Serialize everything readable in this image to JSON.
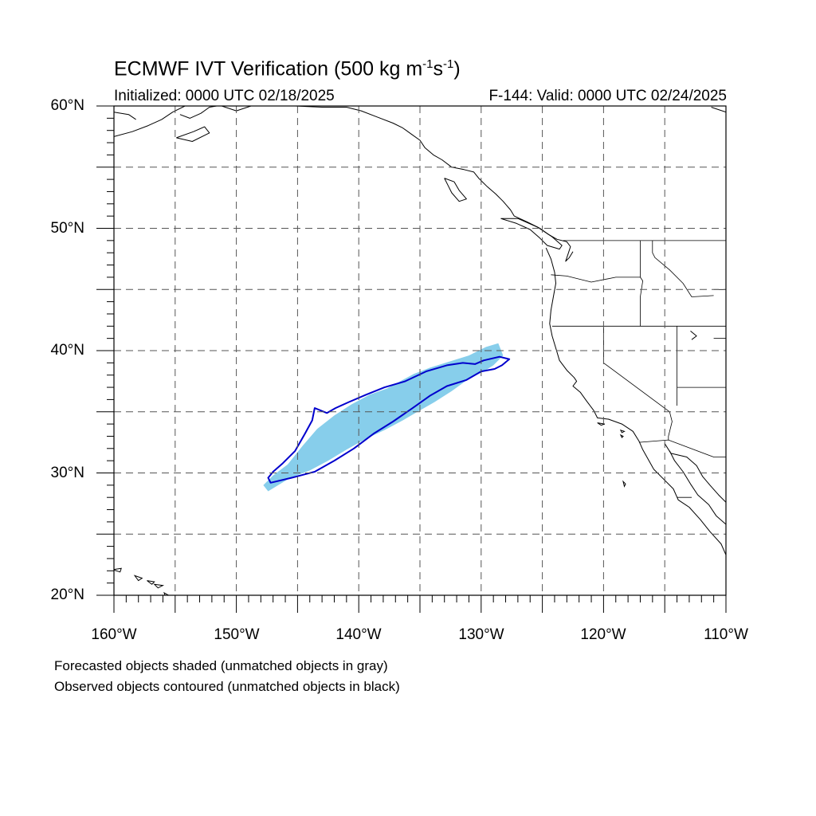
{
  "title": {
    "prefix": "ECMWF IVT Verification (500 kg m",
    "exp1": "-1",
    "mid": "s",
    "exp2": "-1",
    "suffix": ")"
  },
  "subtitle_left": "Initialized: 0000 UTC 02/18/2025",
  "subtitle_right": "F-144: Valid: 0000 UTC 02/24/2025",
  "lat_labels": [
    "60°N",
    "50°N",
    "40°N",
    "30°N",
    "20°N"
  ],
  "lon_labels": [
    "160°W",
    "150°W",
    "140°W",
    "130°W",
    "120°W",
    "110°W"
  ],
  "footer": [
    "Forecasted objects shaded (unmatched objects in gray)",
    "Observed objects contoured (unmatched objects in black)"
  ],
  "colors": {
    "forecast_fill": "#87ceeb",
    "observed_contour": "#0000cd",
    "coastline": "#000000",
    "grid": "#555555"
  },
  "map": {
    "lon_min": -160,
    "lon_max": -110,
    "lat_min": 20,
    "lat_max": 60,
    "grid_step_deg": 5,
    "minor_tick_deg": 1,
    "forecast_object": [
      [
        -147.4,
        28.5
      ],
      [
        -145.6,
        29.6
      ],
      [
        -144.0,
        30.2
      ],
      [
        -142.5,
        31.0
      ],
      [
        -141.0,
        31.9
      ],
      [
        -139.4,
        32.8
      ],
      [
        -137.9,
        33.5
      ],
      [
        -136.4,
        34.3
      ],
      [
        -135.2,
        35.0
      ],
      [
        -133.8,
        35.8
      ],
      [
        -132.4,
        36.7
      ],
      [
        -131.0,
        37.7
      ],
      [
        -129.8,
        38.3
      ],
      [
        -129.0,
        38.8
      ],
      [
        -128.2,
        39.6
      ],
      [
        -128.6,
        40.6
      ],
      [
        -129.6,
        40.3
      ],
      [
        -131.0,
        39.6
      ],
      [
        -132.6,
        39.1
      ],
      [
        -134.2,
        38.6
      ],
      [
        -135.5,
        38.1
      ],
      [
        -136.6,
        37.5
      ],
      [
        -137.7,
        36.9
      ],
      [
        -139.1,
        36.4
      ],
      [
        -140.6,
        35.6
      ],
      [
        -142.0,
        34.7
      ],
      [
        -143.4,
        33.6
      ],
      [
        -144.6,
        32.2
      ],
      [
        -145.8,
        30.7
      ],
      [
        -147.0,
        29.8
      ],
      [
        -147.8,
        29.0
      ]
    ],
    "observed_object": [
      [
        -147.2,
        29.2
      ],
      [
        -145.5,
        29.6
      ],
      [
        -143.6,
        30.1
      ],
      [
        -142.0,
        31.0
      ],
      [
        -140.4,
        32.0
      ],
      [
        -138.8,
        33.2
      ],
      [
        -137.2,
        34.2
      ],
      [
        -135.6,
        35.3
      ],
      [
        -134.2,
        36.3
      ],
      [
        -132.8,
        37.1
      ],
      [
        -131.2,
        37.6
      ],
      [
        -130.0,
        38.3
      ],
      [
        -128.9,
        38.5
      ],
      [
        -128.3,
        38.8
      ],
      [
        -127.7,
        39.3
      ],
      [
        -128.5,
        39.5
      ],
      [
        -129.8,
        39.2
      ],
      [
        -130.5,
        38.9
      ],
      [
        -131.5,
        39.0
      ],
      [
        -132.8,
        38.8
      ],
      [
        -134.5,
        38.3
      ],
      [
        -136.2,
        37.5
      ],
      [
        -137.9,
        37.0
      ],
      [
        -139.4,
        36.4
      ],
      [
        -140.8,
        35.8
      ],
      [
        -141.9,
        35.3
      ],
      [
        -142.6,
        34.9
      ],
      [
        -143.6,
        35.3
      ],
      [
        -143.8,
        34.3
      ],
      [
        -144.4,
        33.2
      ],
      [
        -145.2,
        31.8
      ],
      [
        -146.2,
        30.8
      ],
      [
        -147.0,
        30.1
      ],
      [
        -147.4,
        29.6
      ]
    ],
    "coastlines": [
      [
        [
          -160,
          57.5
        ],
        [
          -158.5,
          57.9
        ],
        [
          -157.2,
          58.4
        ],
        [
          -156.1,
          58.9
        ],
        [
          -155.2,
          59.5
        ],
        [
          -154.2,
          60.0
        ]
      ],
      [
        [
          -160,
          59.5
        ],
        [
          -158.8,
          59.3
        ],
        [
          -158.2,
          58.9
        ]
      ],
      [
        [
          -154.6,
          59.3
        ],
        [
          -153.8,
          59.0
        ],
        [
          -152.9,
          59.4
        ],
        [
          -152.2,
          59.9
        ],
        [
          -151.6,
          60.0
        ]
      ],
      [
        [
          -154.9,
          57.4
        ],
        [
          -153.5,
          57.9
        ],
        [
          -152.6,
          58.3
        ],
        [
          -152.2,
          57.8
        ],
        [
          -153.6,
          57.1
        ],
        [
          -154.9,
          57.4
        ]
      ],
      [
        [
          -151.2,
          60.0
        ],
        [
          -150.0,
          59.6
        ],
        [
          -148.8,
          60.0
        ]
      ],
      [
        [
          -147.0,
          60.0
        ],
        [
          -145.2,
          60.0
        ],
        [
          -143.0,
          59.9
        ],
        [
          -141.0,
          59.9
        ],
        [
          -139.8,
          59.6
        ],
        [
          -138.5,
          59.1
        ],
        [
          -137.2,
          58.6
        ],
        [
          -136.4,
          58.2
        ],
        [
          -135.7,
          57.7
        ],
        [
          -135.0,
          57.2
        ],
        [
          -134.6,
          56.6
        ],
        [
          -133.9,
          56.0
        ],
        [
          -133.2,
          55.6
        ],
        [
          -132.4,
          55.0
        ],
        [
          -131.4,
          54.8
        ],
        [
          -130.6,
          54.6
        ],
        [
          -130.2,
          54.1
        ],
        [
          -129.5,
          53.4
        ],
        [
          -128.8,
          52.8
        ],
        [
          -128.2,
          52.2
        ],
        [
          -127.6,
          51.5
        ],
        [
          -127.3,
          51.0
        ],
        [
          -126.2,
          50.5
        ],
        [
          -125.2,
          50.0
        ],
        [
          -124.5,
          49.5
        ],
        [
          -123.8,
          49.1
        ],
        [
          -123.0,
          48.9
        ],
        [
          -122.7,
          48.5
        ],
        [
          -122.9,
          47.9
        ],
        [
          -123.1,
          47.3
        ],
        [
          -122.8,
          47.6
        ],
        [
          -122.5,
          48.1
        ]
      ],
      [
        [
          -133.0,
          54.1
        ],
        [
          -132.2,
          53.8
        ],
        [
          -131.8,
          53.1
        ],
        [
          -131.2,
          52.4
        ],
        [
          -131.8,
          52.2
        ],
        [
          -132.4,
          52.9
        ],
        [
          -132.7,
          53.5
        ],
        [
          -133.0,
          54.1
        ]
      ],
      [
        [
          -128.4,
          50.8
        ],
        [
          -127.1,
          50.4
        ],
        [
          -126.0,
          49.9
        ],
        [
          -125.2,
          49.2
        ],
        [
          -124.6,
          48.6
        ],
        [
          -123.6,
          48.3
        ],
        [
          -123.4,
          48.6
        ],
        [
          -124.2,
          49.3
        ],
        [
          -125.4,
          50.1
        ],
        [
          -127.0,
          50.8
        ],
        [
          -128.4,
          50.8
        ]
      ],
      [
        [
          -124.7,
          48.4
        ],
        [
          -124.3,
          47.5
        ],
        [
          -124.0,
          46.4
        ],
        [
          -123.9,
          45.5
        ],
        [
          -124.1,
          44.4
        ],
        [
          -124.3,
          43.3
        ],
        [
          -124.4,
          42.2
        ],
        [
          -124.2,
          41.2
        ],
        [
          -123.9,
          40.2
        ],
        [
          -123.6,
          39.2
        ],
        [
          -123.0,
          38.4
        ],
        [
          -122.4,
          37.8
        ],
        [
          -122.2,
          37.5
        ],
        [
          -122.5,
          37.1
        ],
        [
          -121.9,
          36.6
        ],
        [
          -121.4,
          35.9
        ],
        [
          -120.8,
          35.1
        ],
        [
          -120.5,
          34.5
        ],
        [
          -119.6,
          34.4
        ],
        [
          -118.5,
          34.0
        ],
        [
          -117.6,
          33.4
        ],
        [
          -117.1,
          32.6
        ],
        [
          -116.8,
          31.9
        ],
        [
          -116.4,
          31.2
        ],
        [
          -115.9,
          30.3
        ],
        [
          -115.1,
          29.5
        ],
        [
          -114.3,
          28.7
        ],
        [
          -113.9,
          27.8
        ],
        [
          -113.0,
          27.2
        ],
        [
          -112.1,
          26.2
        ],
        [
          -111.3,
          25.2
        ],
        [
          -110.4,
          24.2
        ],
        [
          -110.0,
          23.3
        ]
      ],
      [
        [
          -114.6,
          31.8
        ],
        [
          -114.2,
          31.0
        ],
        [
          -113.5,
          30.1
        ],
        [
          -112.9,
          29.1
        ],
        [
          -112.3,
          28.2
        ],
        [
          -111.4,
          27.4
        ],
        [
          -110.8,
          26.5
        ],
        [
          -110.0,
          25.8
        ]
      ],
      [
        [
          -115.0,
          32.4
        ],
        [
          -114.5,
          31.6
        ],
        [
          -113.2,
          31.3
        ],
        [
          -112.4,
          30.6
        ],
        [
          -111.9,
          29.7
        ],
        [
          -111.3,
          29.0
        ],
        [
          -110.6,
          28.2
        ],
        [
          -110.0,
          27.6
        ]
      ],
      [
        [
          -110.0,
          59.5
        ],
        [
          -110.6,
          59.7
        ],
        [
          -111.2,
          59.9
        ]
      ],
      [
        [
          -112.9,
          41.6
        ],
        [
          -112.4,
          41.2
        ],
        [
          -112.8,
          40.9
        ]
      ]
    ],
    "islands": [
      [
        [
          -160.1,
          22.1
        ],
        [
          -159.4,
          22.2
        ],
        [
          -159.5,
          21.9
        ],
        [
          -160.1,
          22.1
        ]
      ],
      [
        [
          -158.3,
          21.6
        ],
        [
          -157.7,
          21.4
        ],
        [
          -158.0,
          21.2
        ],
        [
          -158.3,
          21.6
        ]
      ],
      [
        [
          -157.3,
          21.2
        ],
        [
          -156.7,
          21.1
        ],
        [
          -156.9,
          20.9
        ],
        [
          -157.3,
          21.2
        ]
      ],
      [
        [
          -156.7,
          20.9
        ],
        [
          -156.0,
          20.8
        ],
        [
          -156.4,
          20.6
        ],
        [
          -156.7,
          20.9
        ]
      ],
      [
        [
          -155.9,
          20.2
        ],
        [
          -155.0,
          19.7
        ],
        [
          -155.5,
          19.1
        ],
        [
          -155.9,
          20.2
        ]
      ],
      [
        [
          -120.5,
          34.1
        ],
        [
          -119.9,
          34.0
        ],
        [
          -120.2,
          33.9
        ],
        [
          -120.5,
          34.1
        ]
      ],
      [
        [
          -118.6,
          33.5
        ],
        [
          -118.3,
          33.4
        ],
        [
          -118.5,
          33.3
        ],
        [
          -118.6,
          33.5
        ]
      ],
      [
        [
          -118.6,
          33.1
        ],
        [
          -118.4,
          33.0
        ],
        [
          -118.5,
          32.9
        ],
        [
          -118.6,
          33.1
        ]
      ],
      [
        [
          -118.4,
          29.3
        ],
        [
          -118.2,
          29.1
        ],
        [
          -118.3,
          28.9
        ],
        [
          -118.4,
          29.3
        ]
      ]
    ],
    "borders": [
      [
        [
          -123.3,
          49.0
        ],
        [
          -110.0,
          49.0
        ]
      ],
      [
        [
          -117.0,
          49.0
        ],
        [
          -117.0,
          46.0
        ],
        [
          -116.8,
          45.7
        ],
        [
          -117.0,
          44.4
        ],
        [
          -117.0,
          42.0
        ]
      ],
      [
        [
          -124.3,
          46.2
        ],
        [
          -123.0,
          46.1
        ],
        [
          -121.0,
          45.6
        ],
        [
          -119.0,
          46.0
        ],
        [
          -117.0,
          46.0
        ]
      ],
      [
        [
          -124.2,
          42.0
        ],
        [
          -110.0,
          42.0
        ]
      ],
      [
        [
          -120.0,
          42.0
        ],
        [
          -120.0,
          39.0
        ],
        [
          -114.6,
          35.0
        ]
      ],
      [
        [
          -114.0,
          42.0
        ],
        [
          -114.0,
          35.5
        ]
      ],
      [
        [
          -116.0,
          49.0
        ],
        [
          -116.0,
          48.0
        ],
        [
          -115.8,
          47.6
        ],
        [
          -114.6,
          46.6
        ],
        [
          -113.5,
          45.5
        ],
        [
          -112.8,
          44.4
        ],
        [
          -111.0,
          44.5
        ]
      ],
      [
        [
          -111.0,
          45.0
        ],
        [
          -110.0,
          45.0
        ]
      ],
      [
        [
          -111.0,
          41.0
        ],
        [
          -110.0,
          41.0
        ]
      ],
      [
        [
          -114.0,
          37.0
        ],
        [
          -110.0,
          37.0
        ]
      ],
      [
        [
          -117.1,
          32.5
        ],
        [
          -114.7,
          32.7
        ],
        [
          -111.0,
          31.3
        ],
        [
          -110.0,
          31.3
        ]
      ],
      [
        [
          -114.6,
          35.0
        ],
        [
          -114.4,
          34.2
        ],
        [
          -114.7,
          33.0
        ],
        [
          -114.7,
          32.7
        ]
      ],
      [
        [
          -114.0,
          28.0
        ],
        [
          -112.8,
          28.0
        ]
      ]
    ]
  }
}
